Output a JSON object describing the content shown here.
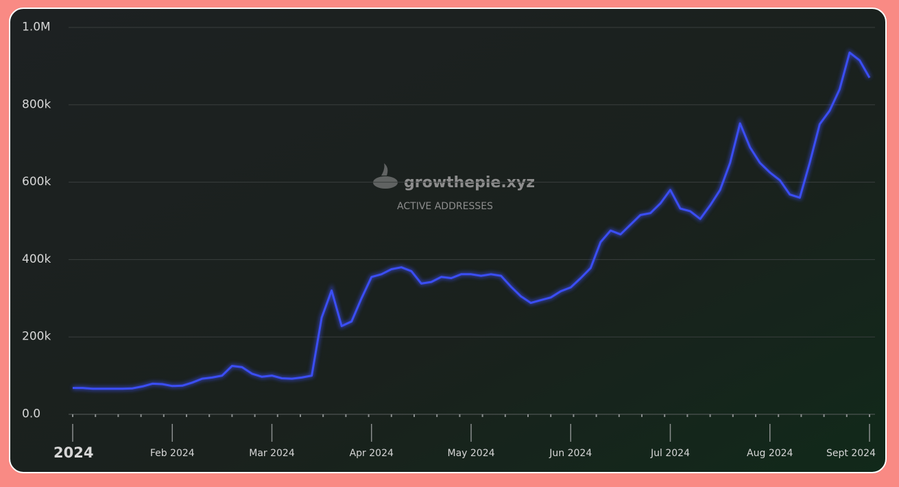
{
  "chart_data": {
    "type": "line",
    "watermark": "growthepie.xyz",
    "subtitle": "ACTIVE ADDRESSES",
    "categories": [
      "2024",
      null,
      null,
      null,
      null,
      null,
      null,
      null,
      null,
      null,
      "Feb 2024",
      null,
      null,
      null,
      null,
      null,
      null,
      null,
      null,
      null,
      "Mar 2024",
      null,
      null,
      null,
      null,
      null,
      null,
      null,
      null,
      null,
      "Apr 2024",
      null,
      null,
      null,
      null,
      null,
      null,
      null,
      null,
      null,
      "May 2024",
      null,
      null,
      null,
      null,
      null,
      null,
      null,
      null,
      null,
      "Jun 2024",
      null,
      null,
      null,
      null,
      null,
      null,
      null,
      null,
      null,
      "Jul 2024",
      null,
      null,
      null,
      null,
      null,
      null,
      null,
      null,
      null,
      "Aug 2024",
      null,
      null,
      null,
      null,
      null,
      null,
      null,
      null,
      null,
      "Sept 2024"
    ],
    "series": [
      {
        "name": "Active Addresses",
        "color": "#3b4ef5",
        "values": [
          68000,
          68000,
          66000,
          66000,
          66000,
          66000,
          67000,
          72000,
          79000,
          78000,
          73000,
          74000,
          82000,
          92000,
          95000,
          100000,
          125000,
          122000,
          105000,
          97000,
          100000,
          93000,
          92000,
          95000,
          100000,
          250000,
          320000,
          228000,
          240000,
          300000,
          355000,
          362000,
          375000,
          380000,
          370000,
          338000,
          342000,
          355000,
          352000,
          362000,
          362000,
          358000,
          362000,
          358000,
          330000,
          305000,
          288000,
          295000,
          302000,
          318000,
          328000,
          352000,
          378000,
          445000,
          475000,
          465000,
          490000,
          515000,
          520000,
          545000,
          580000,
          532000,
          525000,
          505000,
          540000,
          580000,
          650000,
          752000,
          690000,
          650000,
          625000,
          605000,
          568000,
          560000,
          650000,
          750000,
          785000,
          840000,
          935000,
          915000,
          870000
        ]
      }
    ],
    "ylim": [
      0,
      1000000
    ],
    "yticks": [
      {
        "value": 0,
        "label": "0.0"
      },
      {
        "value": 200000,
        "label": "200k"
      },
      {
        "value": 400000,
        "label": "400k"
      },
      {
        "value": 600000,
        "label": "600k"
      },
      {
        "value": 800000,
        "label": "800k"
      },
      {
        "value": 1000000,
        "label": "1.0M"
      }
    ],
    "grid": true
  }
}
